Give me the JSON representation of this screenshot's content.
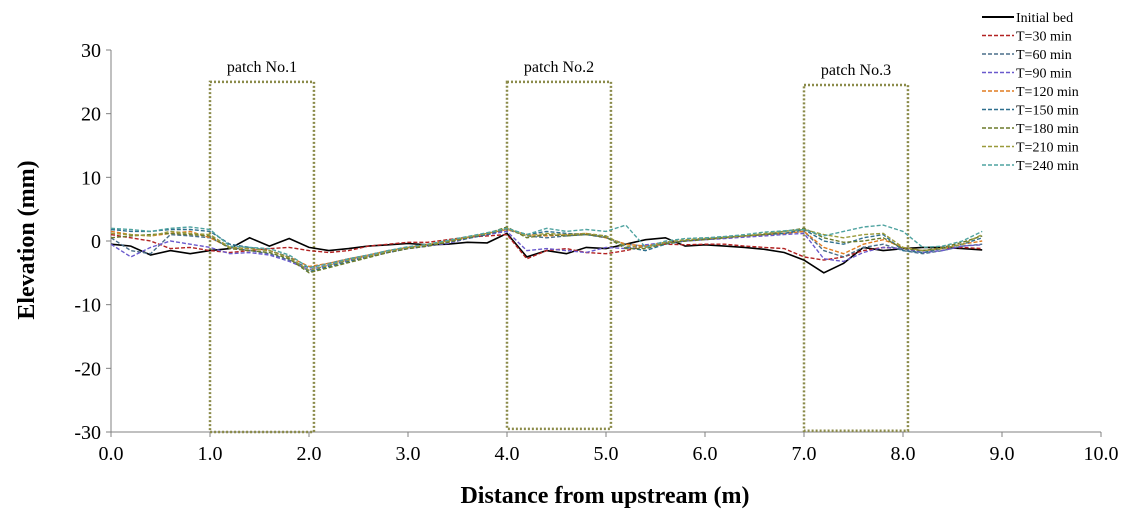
{
  "chart_data": {
    "type": "line",
    "title": "",
    "xlabel": "Distance from upstream (m)",
    "ylabel": "Elevation (mm)",
    "xlim": [
      0,
      10
    ],
    "ylim": [
      -30,
      30
    ],
    "x_ticks": [
      "0.0",
      "1.0",
      "2.0",
      "3.0",
      "4.0",
      "5.0",
      "6.0",
      "7.0",
      "8.0",
      "9.0",
      "10.0"
    ],
    "y_ticks": [
      "30",
      "20",
      "10",
      "0",
      "-10",
      "-20",
      "-30"
    ],
    "grid": false,
    "legend_position": "top-right",
    "patches": [
      {
        "label": "patch No.1",
        "x_start": 1.0,
        "x_end": 2.05,
        "y_bottom": -30,
        "y_top": 25,
        "color": "#8b8b4a"
      },
      {
        "label": "patch No.2",
        "x_start": 4.0,
        "x_end": 5.05,
        "y_bottom": -29.5,
        "y_top": 25,
        "color": "#8b8b4a"
      },
      {
        "label": "patch No.3",
        "x_start": 7.0,
        "x_end": 8.05,
        "y_bottom": -29.8,
        "y_top": 24.5,
        "color": "#8b8b4a"
      }
    ],
    "series": [
      {
        "name": "Initial bed",
        "color": "#000000",
        "dash": "solid",
        "x": [
          0,
          0.2,
          0.4,
          0.6,
          0.8,
          1.0,
          1.2,
          1.4,
          1.6,
          1.8,
          2.0,
          2.2,
          2.4,
          2.6,
          2.8,
          3.0,
          3.2,
          3.4,
          3.6,
          3.8,
          4.0,
          4.2,
          4.4,
          4.6,
          4.8,
          5.0,
          5.2,
          5.4,
          5.6,
          5.8,
          6.0,
          6.2,
          6.4,
          6.6,
          6.8,
          7.0,
          7.2,
          7.4,
          7.6,
          7.8,
          8.0,
          8.2,
          8.4,
          8.6,
          8.8
        ],
        "y": [
          -0.5,
          -0.8,
          -2.2,
          -1.5,
          -2.0,
          -1.5,
          -1.2,
          0.5,
          -0.8,
          0.4,
          -1.0,
          -1.5,
          -1.2,
          -0.8,
          -0.6,
          -0.4,
          -0.6,
          -0.5,
          -0.2,
          -0.3,
          1.2,
          -2.5,
          -1.5,
          -2.0,
          -1.0,
          -1.2,
          -0.5,
          0.2,
          0.5,
          -0.8,
          -0.6,
          -0.8,
          -1.0,
          -1.3,
          -1.8,
          -3.0,
          -5.0,
          -3.5,
          -1.0,
          -1.5,
          -1.2,
          -1.0,
          -1.0,
          -1.2,
          -1.4
        ]
      },
      {
        "name": "T=30 min",
        "color": "#b22222",
        "dash": "dash",
        "x": [
          0,
          0.2,
          0.4,
          0.6,
          0.8,
          1.0,
          1.2,
          1.4,
          1.6,
          1.8,
          2.0,
          2.2,
          2.4,
          2.6,
          2.8,
          3.0,
          3.2,
          3.4,
          3.6,
          3.8,
          4.0,
          4.2,
          4.4,
          4.6,
          4.8,
          5.0,
          5.2,
          5.4,
          5.6,
          5.8,
          6.0,
          6.2,
          6.4,
          6.6,
          6.8,
          7.0,
          7.2,
          7.4,
          7.6,
          7.8,
          8.0,
          8.2,
          8.4,
          8.6,
          8.8
        ],
        "y": [
          1.0,
          0.5,
          0.0,
          -1.2,
          -1.0,
          -1.5,
          -1.8,
          -1.5,
          -1.2,
          -1.0,
          -1.5,
          -1.8,
          -1.5,
          -0.8,
          -0.5,
          -0.2,
          -0.2,
          0.2,
          0.6,
          0.8,
          1.0,
          -2.8,
          -1.5,
          -1.2,
          -1.8,
          -2.0,
          -1.5,
          -0.8,
          -0.5,
          -0.6,
          -0.5,
          -0.5,
          -0.8,
          -1.0,
          -1.2,
          -2.5,
          -3.0,
          -2.5,
          -1.5,
          -1.0,
          -1.2,
          -1.5,
          -1.2,
          -1.0,
          -1.2
        ]
      },
      {
        "name": "T=60 min",
        "color": "#4a6e8a",
        "dash": "dash",
        "x": [
          0,
          0.2,
          0.4,
          0.6,
          0.8,
          1.0,
          1.2,
          1.4,
          1.6,
          1.8,
          2.0,
          2.2,
          2.4,
          2.6,
          2.8,
          3.0,
          3.2,
          3.4,
          3.6,
          3.8,
          4.0,
          4.2,
          4.4,
          4.6,
          4.8,
          5.0,
          5.2,
          5.4,
          5.6,
          5.8,
          6.0,
          6.2,
          6.4,
          6.6,
          6.8,
          7.0,
          7.2,
          7.4,
          7.6,
          7.8,
          8.0,
          8.2,
          8.4,
          8.6,
          8.8
        ],
        "y": [
          0.5,
          -1.5,
          -2.0,
          1.0,
          0.8,
          0.5,
          -1.0,
          -1.5,
          -2.0,
          -3.0,
          -4.2,
          -3.5,
          -2.8,
          -2.2,
          -1.5,
          -1.0,
          -0.6,
          -0.2,
          0.5,
          1.0,
          1.8,
          0.8,
          0.5,
          0.8,
          1.0,
          0.5,
          -0.5,
          -0.8,
          -0.3,
          0.0,
          0.3,
          0.5,
          0.8,
          1.0,
          1.2,
          1.5,
          -1.5,
          -2.5,
          -1.0,
          -0.5,
          -1.5,
          -2.0,
          -1.5,
          -0.8,
          -0.5
        ]
      },
      {
        "name": "T=90 min",
        "color": "#6a5acd",
        "dash": "dash",
        "x": [
          0,
          0.2,
          0.4,
          0.6,
          0.8,
          1.0,
          1.2,
          1.4,
          1.6,
          1.8,
          2.0,
          2.2,
          2.4,
          2.6,
          2.8,
          3.0,
          3.2,
          3.4,
          3.6,
          3.8,
          4.0,
          4.2,
          4.4,
          4.6,
          4.8,
          5.0,
          5.2,
          5.4,
          5.6,
          5.8,
          6.0,
          6.2,
          6.4,
          6.6,
          6.8,
          7.0,
          7.2,
          7.4,
          7.6,
          7.8,
          8.0,
          8.2,
          8.4,
          8.6,
          8.8
        ],
        "y": [
          -0.5,
          -2.5,
          -1.0,
          0.0,
          -0.5,
          -1.0,
          -2.0,
          -1.8,
          -2.2,
          -3.2,
          -4.5,
          -3.8,
          -3.0,
          -2.4,
          -1.8,
          -1.2,
          -0.8,
          -0.4,
          0.4,
          1.0,
          1.5,
          -1.5,
          -1.2,
          -1.5,
          -1.8,
          -1.0,
          -1.2,
          -0.6,
          -0.2,
          0.0,
          0.2,
          0.4,
          0.6,
          0.8,
          1.0,
          1.2,
          -2.8,
          -3.2,
          -1.8,
          -1.0,
          -1.2,
          -1.8,
          -1.5,
          -0.8,
          -0.6
        ]
      },
      {
        "name": "T=120 min",
        "color": "#e07b20",
        "dash": "dash",
        "x": [
          0,
          0.2,
          0.4,
          0.6,
          0.8,
          1.0,
          1.2,
          1.4,
          1.6,
          1.8,
          2.0,
          2.2,
          2.4,
          2.6,
          2.8,
          3.0,
          3.2,
          3.4,
          3.6,
          3.8,
          4.0,
          4.2,
          4.4,
          4.6,
          4.8,
          5.0,
          5.2,
          5.4,
          5.6,
          5.8,
          6.0,
          6.2,
          6.4,
          6.6,
          6.8,
          7.0,
          7.2,
          7.4,
          7.6,
          7.8,
          8.0,
          8.2,
          8.4,
          8.6,
          8.8
        ],
        "y": [
          1.5,
          1.0,
          0.8,
          1.2,
          1.5,
          0.5,
          -1.0,
          -1.2,
          -1.5,
          -2.5,
          -4.0,
          -3.5,
          -2.8,
          -2.2,
          -1.5,
          -1.0,
          -0.5,
          0.0,
          0.6,
          1.2,
          1.8,
          1.0,
          0.8,
          1.0,
          1.2,
          0.5,
          -0.5,
          -0.8,
          -0.2,
          0.2,
          0.4,
          0.6,
          0.8,
          1.0,
          1.2,
          1.5,
          -1.0,
          -2.0,
          -0.5,
          0.2,
          -1.0,
          -1.5,
          -1.2,
          -0.5,
          0.0
        ]
      },
      {
        "name": "T=150 min",
        "color": "#2e6f8e",
        "dash": "dash",
        "x": [
          0,
          0.2,
          0.4,
          0.6,
          0.8,
          1.0,
          1.2,
          1.4,
          1.6,
          1.8,
          2.0,
          2.2,
          2.4,
          2.6,
          2.8,
          3.0,
          3.2,
          3.4,
          3.6,
          3.8,
          4.0,
          4.2,
          4.4,
          4.6,
          4.8,
          5.0,
          5.2,
          5.4,
          5.6,
          5.8,
          6.0,
          6.2,
          6.4,
          6.6,
          6.8,
          7.0,
          7.2,
          7.4,
          7.6,
          7.8,
          8.0,
          8.2,
          8.4,
          8.6,
          8.8
        ],
        "y": [
          1.8,
          1.5,
          1.5,
          1.8,
          1.8,
          1.5,
          -0.5,
          -1.0,
          -1.5,
          -2.5,
          -4.8,
          -4.0,
          -3.2,
          -2.5,
          -1.8,
          -1.2,
          -0.8,
          -0.2,
          0.4,
          1.0,
          2.0,
          1.0,
          1.5,
          1.2,
          1.0,
          0.8,
          -1.0,
          -1.5,
          -0.5,
          0.0,
          0.3,
          0.6,
          0.8,
          1.0,
          1.2,
          1.8,
          0.0,
          -0.5,
          0.5,
          1.0,
          -1.5,
          -1.8,
          -1.2,
          -0.5,
          0.5
        ]
      },
      {
        "name": "T=180 min",
        "color": "#6b7a2a",
        "dash": "dash",
        "x": [
          0,
          0.2,
          0.4,
          0.6,
          0.8,
          1.0,
          1.2,
          1.4,
          1.6,
          1.8,
          2.0,
          2.2,
          2.4,
          2.6,
          2.8,
          3.0,
          3.2,
          3.4,
          3.6,
          3.8,
          4.0,
          4.2,
          4.4,
          4.6,
          4.8,
          5.0,
          5.2,
          5.4,
          5.6,
          5.8,
          6.0,
          6.2,
          6.4,
          6.6,
          6.8,
          7.0,
          7.2,
          7.4,
          7.6,
          7.8,
          8.0,
          8.2,
          8.4,
          8.6,
          8.8
        ],
        "y": [
          0.5,
          0.8,
          1.0,
          1.2,
          1.0,
          0.8,
          -1.2,
          -1.5,
          -1.8,
          -2.8,
          -5.0,
          -4.2,
          -3.4,
          -2.6,
          -1.8,
          -1.2,
          -0.8,
          -0.2,
          0.5,
          1.2,
          2.2,
          0.5,
          1.0,
          0.8,
          1.0,
          0.6,
          -1.2,
          -1.2,
          -0.4,
          0.0,
          0.2,
          0.5,
          0.8,
          1.0,
          1.5,
          2.0,
          0.5,
          -0.2,
          0.0,
          0.5,
          -1.2,
          -1.5,
          -1.0,
          -0.2,
          0.8
        ]
      },
      {
        "name": "T=210 min",
        "color": "#9a9a3a",
        "dash": "dash",
        "x": [
          0,
          0.2,
          0.4,
          0.6,
          0.8,
          1.0,
          1.2,
          1.4,
          1.6,
          1.8,
          2.0,
          2.2,
          2.4,
          2.6,
          2.8,
          3.0,
          3.2,
          3.4,
          3.6,
          3.8,
          4.0,
          4.2,
          4.4,
          4.6,
          4.8,
          5.0,
          5.2,
          5.4,
          5.6,
          5.8,
          6.0,
          6.2,
          6.4,
          6.6,
          6.8,
          7.0,
          7.2,
          7.4,
          7.6,
          7.8,
          8.0,
          8.2,
          8.4,
          8.6,
          8.8
        ],
        "y": [
          1.2,
          1.0,
          0.8,
          1.5,
          1.2,
          1.0,
          -1.0,
          -1.2,
          -1.5,
          -2.6,
          -4.6,
          -3.8,
          -3.0,
          -2.4,
          -1.6,
          -1.0,
          -0.6,
          0.0,
          0.6,
          1.2,
          2.0,
          0.8,
          1.2,
          1.0,
          1.2,
          0.8,
          -0.8,
          -1.0,
          -0.2,
          0.2,
          0.4,
          0.6,
          0.8,
          1.2,
          1.5,
          1.8,
          1.0,
          0.5,
          1.0,
          1.2,
          -1.0,
          -1.5,
          -1.2,
          -0.5,
          1.0
        ]
      },
      {
        "name": "T=240 min",
        "color": "#4fa3a0",
        "dash": "dash",
        "x": [
          0,
          0.2,
          0.4,
          0.6,
          0.8,
          1.0,
          1.2,
          1.4,
          1.6,
          1.8,
          2.0,
          2.2,
          2.4,
          2.6,
          2.8,
          3.0,
          3.2,
          3.4,
          3.6,
          3.8,
          4.0,
          4.2,
          4.4,
          4.6,
          4.8,
          5.0,
          5.2,
          5.4,
          5.6,
          5.8,
          6.0,
          6.2,
          6.4,
          6.6,
          6.8,
          7.0,
          7.2,
          7.4,
          7.6,
          7.8,
          8.0,
          8.2,
          8.4,
          8.6,
          8.8
        ],
        "y": [
          2.0,
          1.8,
          1.5,
          2.0,
          2.2,
          1.8,
          -0.8,
          -1.0,
          -1.2,
          -2.2,
          -4.2,
          -3.6,
          -2.8,
          -2.2,
          -1.5,
          -0.9,
          -0.5,
          0.1,
          0.7,
          1.3,
          2.0,
          1.0,
          2.0,
          1.5,
          1.8,
          1.5,
          2.5,
          -1.0,
          0.0,
          0.4,
          0.5,
          0.7,
          1.0,
          1.4,
          1.6,
          1.8,
          0.8,
          1.5,
          2.2,
          2.5,
          1.5,
          -1.0,
          -0.8,
          0.0,
          1.5
        ]
      }
    ]
  }
}
